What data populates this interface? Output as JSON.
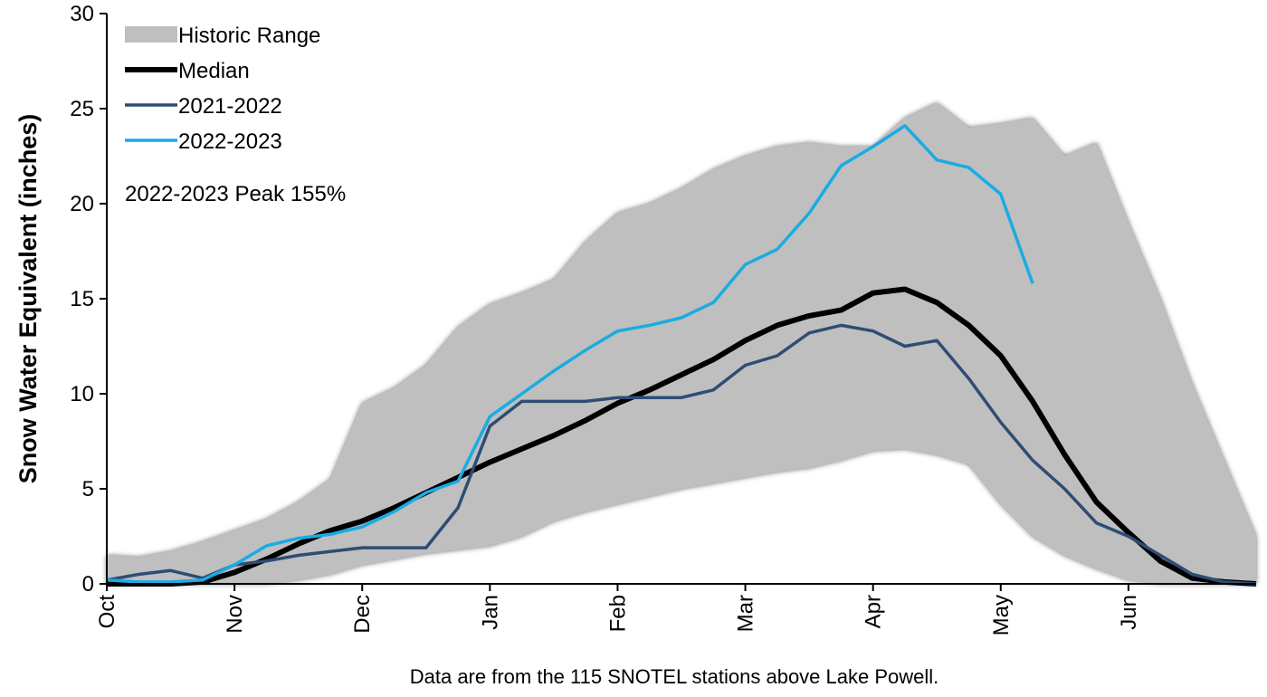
{
  "chart_data": {
    "type": "line",
    "y_label": "Snow Water Equivalent (inches)",
    "annotation": "2022-2023 Peak 155%",
    "footnote": "Data are from the 115 SNOTEL stations above Lake Powell.",
    "categories": [
      "Oct",
      null,
      null,
      null,
      "Nov",
      null,
      null,
      null,
      "Dec",
      null,
      null,
      null,
      "Jan",
      null,
      null,
      null,
      "Feb",
      null,
      null,
      null,
      "Mar",
      null,
      null,
      null,
      "Apr",
      null,
      null,
      null,
      "May",
      null,
      null,
      null,
      "Jun",
      null,
      null,
      null,
      null
    ],
    "ylim": [
      0,
      30
    ],
    "yticks": [
      0,
      5,
      10,
      15,
      20,
      25,
      30
    ],
    "series": [
      {
        "name": "Historic Range",
        "type": "area",
        "color": "#bfbfbf",
        "values": [
          1.5,
          1.4,
          1.7,
          2.2,
          2.8,
          3.4,
          4.3,
          5.5,
          9.5,
          10.3,
          11.5,
          13.5,
          14.7,
          15.3,
          16.0,
          18.0,
          19.5,
          20.0,
          20.8,
          21.8,
          22.5,
          23.0,
          23.2,
          23.0,
          23.0,
          24.5,
          25.3,
          24.0,
          24.2,
          24.5,
          22.5,
          23.2,
          19.0,
          15.0,
          10.5,
          6.5,
          2.5
        ],
        "lower": [
          0,
          0,
          0,
          0,
          0,
          0,
          0.2,
          0.5,
          1.0,
          1.3,
          1.6,
          1.8,
          2.0,
          2.5,
          3.3,
          3.8,
          4.2,
          4.6,
          5.0,
          5.3,
          5.6,
          5.9,
          6.1,
          6.5,
          7.0,
          7.1,
          6.8,
          6.3,
          4.2,
          2.5,
          1.5,
          0.8,
          0.2,
          0,
          0,
          0,
          0
        ]
      },
      {
        "name": "Median",
        "color": "#000000",
        "width": 6,
        "values": [
          0,
          0,
          0,
          0.1,
          0.6,
          1.3,
          2.1,
          2.8,
          3.3,
          4.0,
          4.8,
          5.6,
          6.4,
          7.1,
          7.8,
          8.6,
          9.5,
          10.2,
          11.0,
          11.8,
          12.8,
          13.6,
          14.1,
          14.4,
          15.3,
          15.5,
          14.8,
          13.6,
          12.0,
          9.6,
          6.8,
          4.3,
          2.7,
          1.2,
          0.3,
          0.1,
          0
        ]
      },
      {
        "name": "2021-2022",
        "color": "#2e4d74",
        "width": 3.5,
        "values": [
          0.2,
          0.5,
          0.7,
          0.3,
          1.0,
          1.2,
          1.5,
          1.7,
          1.9,
          1.9,
          1.9,
          4.0,
          8.3,
          9.6,
          9.6,
          9.6,
          9.8,
          9.8,
          9.8,
          10.2,
          11.5,
          12.0,
          13.2,
          13.6,
          13.3,
          12.5,
          12.8,
          10.8,
          8.5,
          6.5,
          5.0,
          3.2,
          2.5,
          1.5,
          0.5,
          0.1,
          0
        ]
      },
      {
        "name": "2022-2023",
        "color": "#1aabe3",
        "width": 3.5,
        "values": [
          0.2,
          0.1,
          0.1,
          0.2,
          1.0,
          2.0,
          2.4,
          2.6,
          3.0,
          3.8,
          4.8,
          5.4,
          8.8,
          10.0,
          11.2,
          12.3,
          13.3,
          13.6,
          14.0,
          14.8,
          16.8,
          17.6,
          19.5,
          22.0,
          23.0,
          24.1,
          22.3,
          21.9,
          20.5,
          15.8,
          null,
          null,
          null,
          null,
          null,
          null,
          null
        ]
      }
    ]
  }
}
